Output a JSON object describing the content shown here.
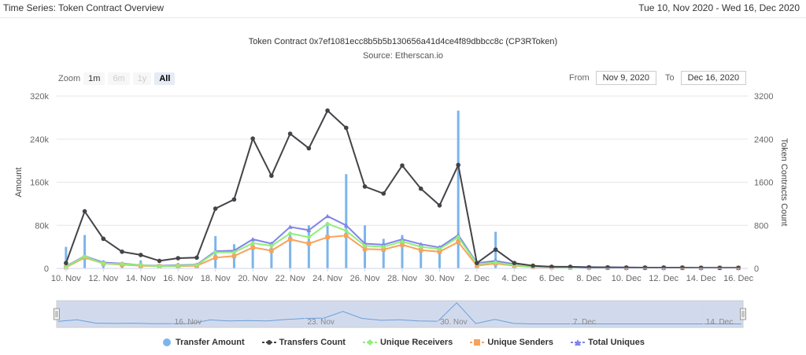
{
  "header": {
    "title": "Time Series: Token Contract Overview",
    "date_range": "Tue 10, Nov 2020 - Wed 16, Dec 2020"
  },
  "controls": {
    "zoom_label": "Zoom",
    "zoom_buttons": [
      "1m",
      "6m",
      "1y",
      "All"
    ],
    "from_label": "From",
    "from_value": "Nov 9, 2020",
    "to_label": "To",
    "to_value": "Dec 16, 2020"
  },
  "colors": {
    "transfer_amount": "#7cb5ec",
    "transfers_count": "#434348",
    "unique_receivers": "#90ed7d",
    "unique_senders": "#f7a35c",
    "total_uniques": "#8085e9"
  },
  "chart_data": {
    "type": "bar",
    "title": "Token Contract 0x7ef1081ecc8b5b5b130656a41d4ce4f89dbbcc8c (CP3RToken)",
    "subtitle": "Source: Etherscan.io",
    "x": [
      "Nov 10",
      "Nov 11",
      "Nov 12",
      "Nov 13",
      "Nov 14",
      "Nov 15",
      "Nov 16",
      "Nov 17",
      "Nov 18",
      "Nov 19",
      "Nov 20",
      "Nov 21",
      "Nov 22",
      "Nov 23",
      "Nov 24",
      "Nov 25",
      "Nov 26",
      "Nov 27",
      "Nov 28",
      "Nov 29",
      "Nov 30",
      "Dec 1",
      "Dec 2",
      "Dec 3",
      "Dec 4",
      "Dec 5",
      "Dec 6",
      "Dec 7",
      "Dec 8",
      "Dec 9",
      "Dec 10",
      "Dec 11",
      "Dec 12",
      "Dec 13",
      "Dec 14",
      "Dec 15",
      "Dec 16"
    ],
    "xticks": [
      "10. Nov",
      "12. Nov",
      "14. Nov",
      "16. Nov",
      "18. Nov",
      "20. Nov",
      "22. Nov",
      "24. Nov",
      "26. Nov",
      "28. Nov",
      "30. Nov",
      "2. Dec",
      "4. Dec",
      "6. Dec",
      "8. Dec",
      "10. Dec",
      "12. Dec",
      "14. Dec",
      "16. Dec"
    ],
    "ylabel_left": "Amount",
    "ylabel_right": "Token Contracts Count",
    "ylim_left": [
      0,
      320000
    ],
    "ylim_right": [
      0,
      3200
    ],
    "yticks_left": [
      "0",
      "80k",
      "160k",
      "240k",
      "320k"
    ],
    "yticks_right": [
      "0",
      "800",
      "1600",
      "2400",
      "3200"
    ],
    "series": [
      {
        "name": "Transfer Amount",
        "type": "bar",
        "axis": "left",
        "values": [
          40000,
          62000,
          15000,
          12000,
          15000,
          8000,
          10000,
          10000,
          60000,
          45000,
          50000,
          45000,
          65000,
          80000,
          85000,
          175000,
          80000,
          55000,
          62000,
          45000,
          42000,
          293000,
          10000,
          68000,
          12000,
          5000,
          5000,
          5000,
          5000,
          5000,
          5000,
          5000,
          5000,
          5000,
          5000,
          5000,
          5000
        ]
      },
      {
        "name": "Transfers Count",
        "type": "line",
        "axis": "right",
        "values": [
          100,
          1060,
          550,
          310,
          250,
          140,
          190,
          200,
          1110,
          1280,
          2410,
          1720,
          2500,
          2230,
          2930,
          2610,
          1520,
          1390,
          1910,
          1480,
          1170,
          1920,
          100,
          350,
          100,
          50,
          30,
          30,
          20,
          20,
          15,
          15,
          15,
          15,
          10,
          10,
          10
        ]
      },
      {
        "name": "Unique Receivers",
        "type": "line",
        "axis": "right",
        "values": [
          30,
          220,
          90,
          80,
          60,
          40,
          50,
          60,
          300,
          300,
          470,
          420,
          650,
          580,
          830,
          700,
          420,
          400,
          500,
          400,
          360,
          580,
          80,
          110,
          60,
          30,
          25,
          20,
          20,
          15,
          15,
          10,
          10,
          10,
          10,
          10,
          10
        ]
      },
      {
        "name": "Unique Senders",
        "type": "line",
        "axis": "right",
        "values": [
          20,
          200,
          90,
          70,
          50,
          40,
          40,
          50,
          200,
          230,
          390,
          330,
          540,
          460,
          580,
          610,
          360,
          350,
          440,
          340,
          310,
          490,
          50,
          90,
          50,
          25,
          20,
          15,
          15,
          10,
          10,
          10,
          10,
          10,
          10,
          10,
          10
        ]
      },
      {
        "name": "Total Uniques",
        "type": "line",
        "axis": "right",
        "values": [
          40,
          230,
          110,
          90,
          60,
          50,
          60,
          70,
          320,
          330,
          540,
          460,
          770,
          710,
          970,
          800,
          460,
          440,
          540,
          450,
          390,
          620,
          100,
          140,
          80,
          40,
          30,
          25,
          25,
          20,
          20,
          15,
          15,
          15,
          15,
          15,
          15
        ]
      }
    ],
    "navigator": {
      "labels": [
        "16. Nov",
        "23. Nov",
        "30. Nov",
        "7. Dec",
        "14. Dec"
      ]
    },
    "legend_position": "bottom"
  }
}
